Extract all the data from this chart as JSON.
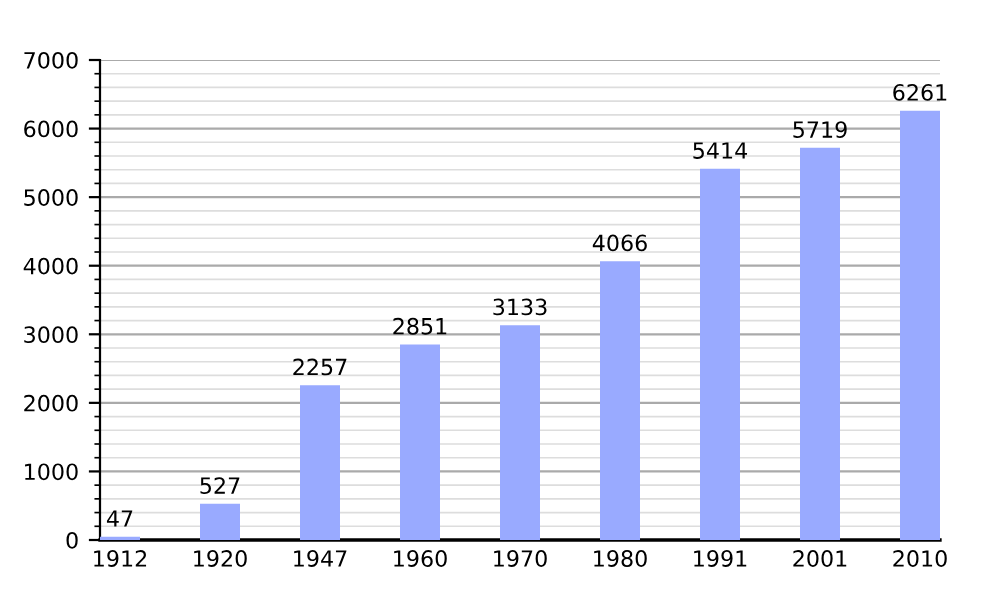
{
  "chart_data": {
    "type": "bar",
    "categories": [
      "1912",
      "1920",
      "1947",
      "1960",
      "1970",
      "1980",
      "1991",
      "2001",
      "2010"
    ],
    "values": [
      47,
      527,
      2257,
      2851,
      3133,
      4066,
      5414,
      5719,
      6261
    ],
    "color": "#99aaff",
    "ylim": [
      0,
      7000
    ],
    "yticks": [
      0,
      1000,
      2000,
      3000,
      4000,
      5000,
      6000,
      7000
    ],
    "grid": "y",
    "data_labels": true
  }
}
